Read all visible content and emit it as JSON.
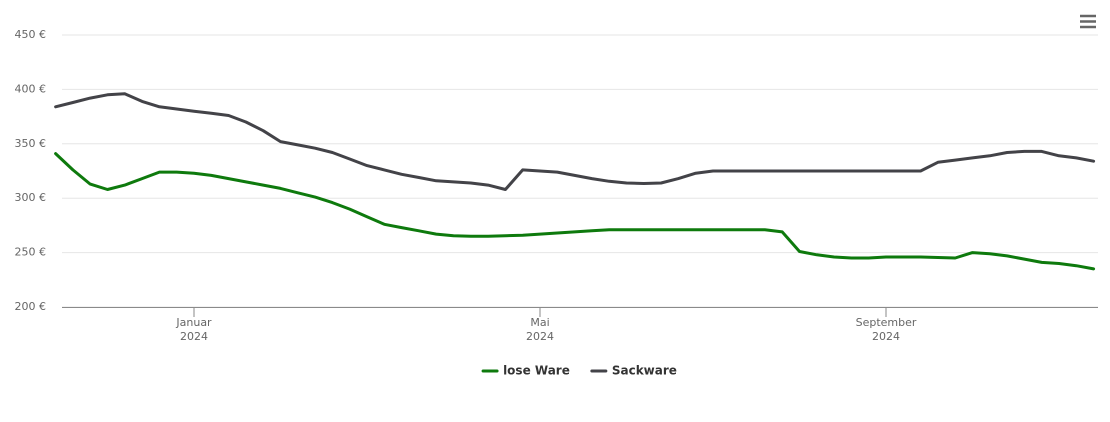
{
  "chart_data": {
    "type": "line",
    "x": [
      null,
      null,
      null,
      null,
      null,
      null,
      null,
      null,
      "Januar 2024",
      null,
      null,
      null,
      null,
      null,
      null,
      null,
      null,
      null,
      null,
      null,
      null,
      null,
      null,
      null,
      null,
      null,
      null,
      null,
      "Mai 2024",
      null,
      null,
      null,
      null,
      null,
      null,
      null,
      null,
      null,
      null,
      null,
      null,
      null,
      null,
      null,
      null,
      null,
      null,
      null,
      "September 2024",
      null,
      null,
      null,
      null,
      null,
      null,
      null,
      null,
      null,
      null,
      null,
      null
    ],
    "series": [
      {
        "name": "lose Ware",
        "color": "#0e7a0d",
        "values": [
          341,
          326,
          313,
          308,
          312,
          318,
          324,
          324,
          323,
          321,
          318,
          315,
          312,
          309,
          305,
          301,
          296,
          290,
          283,
          276,
          273,
          270,
          267,
          265.5,
          265,
          265,
          265.5,
          266,
          267,
          268,
          269,
          270,
          271,
          271,
          271,
          271,
          271,
          271,
          271,
          271,
          271,
          271,
          269,
          251,
          248,
          246,
          245,
          245,
          246,
          246,
          246,
          245.5,
          245,
          250,
          249,
          247,
          244,
          241,
          240,
          238,
          235
        ]
      },
      {
        "name": "Sackware",
        "color": "#434348",
        "values": [
          384,
          388,
          392,
          395,
          396,
          389,
          384,
          382,
          380,
          378,
          376,
          370,
          362,
          352,
          349,
          346,
          342,
          336,
          330,
          326,
          322,
          319,
          316,
          315,
          314,
          312,
          308,
          326,
          325,
          324,
          321,
          318,
          315.5,
          314,
          313.5,
          314,
          318,
          323,
          325,
          325,
          325,
          325,
          325,
          325,
          325,
          325,
          325,
          325,
          325,
          325,
          325,
          333,
          335,
          337,
          339,
          342,
          343,
          343,
          339,
          337,
          334
        ]
      }
    ],
    "ylim": [
      200,
      450
    ],
    "yticks": [
      {
        "value": 200,
        "label": "200 €"
      },
      {
        "value": 250,
        "label": "250 €"
      },
      {
        "value": 300,
        "label": "300 €"
      },
      {
        "value": 350,
        "label": "350 €"
      },
      {
        "value": 400,
        "label": "400 €"
      },
      {
        "value": 450,
        "label": "450 €"
      }
    ],
    "grid": true,
    "legend": "bottom"
  }
}
